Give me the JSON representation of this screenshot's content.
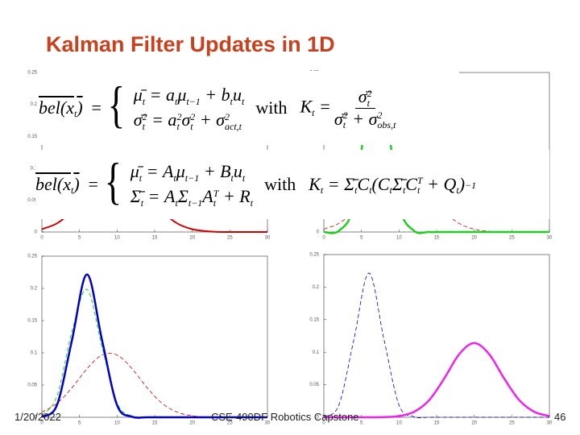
{
  "header": {
    "title": "Kalman Filter Updates in 1D"
  },
  "footer": {
    "date": "1/20/2022",
    "course": "CSE-490DF Robotics Capstone",
    "page": "46"
  },
  "equations": [
    {
      "lhs": [
        {
          "text": "bel(x",
          "sub": "t"
        },
        {
          "text": ")"
        }
      ],
      "lines": [
        [
          {
            "text": "μ̄",
            "sub": "t"
          },
          {
            "text": " = a",
            "sub": "t"
          },
          {
            "text": "μ",
            "sub": "t−1"
          },
          {
            "text": " + b",
            "sub": "t"
          },
          {
            "text": "u",
            "sub": "t"
          }
        ],
        [
          {
            "text": "σ̄",
            "sub": "t",
            "sup": "2"
          },
          {
            "text": " = a",
            "sub": "t",
            "sup": "2"
          },
          {
            "text": "σ",
            "sub": "t",
            "sup": "2"
          },
          {
            "text": " + σ",
            "sub": "act,t",
            "sup": "2"
          }
        ]
      ],
      "with": "with",
      "gain": {
        "lhs": [
          {
            "text": "K",
            "sub": "t"
          },
          {
            "text": " ="
          }
        ],
        "numerator": [
          {
            "text": "σ̄",
            "sub": "t",
            "sup": "2"
          }
        ],
        "denominator": [
          {
            "text": "σ̄",
            "sub": "t",
            "sup": "2"
          },
          {
            "text": " + σ",
            "sub": "obs,t",
            "sup": "2"
          }
        ]
      }
    },
    {
      "lhs": [
        {
          "text": "bel(x",
          "sub": "t"
        },
        {
          "text": ")"
        }
      ],
      "lines": [
        [
          {
            "text": "μ̄",
            "sub": "t"
          },
          {
            "text": " = A",
            "sub": "t"
          },
          {
            "text": "μ",
            "sub": "t−1"
          },
          {
            "text": " + B",
            "sub": "t"
          },
          {
            "text": "u",
            "sub": "t"
          }
        ],
        [
          {
            "text": "Σ̄",
            "sub": "t"
          },
          {
            "text": " = A",
            "sub": "t"
          },
          {
            "text": "Σ",
            "sub": "t−1"
          },
          {
            "text": "A",
            "sub": "t",
            "sup": "T"
          },
          {
            "text": " + R",
            "sub": "t"
          }
        ]
      ],
      "with": "with",
      "gain": {
        "lhs": [
          {
            "text": "K",
            "sub": "t"
          },
          {
            "text": " = Σ̄",
            "sub": "t"
          },
          {
            "text": "C",
            "sub": "t"
          },
          {
            "text": "(C",
            "sub": "t"
          },
          {
            "text": "Σ̄",
            "sub": "t"
          },
          {
            "text": "C",
            "sub": "t",
            "sup": "T"
          },
          {
            "text": " + Q",
            "sub": "t"
          },
          {
            "text": ")",
            "sup": "−1"
          }
        ]
      }
    }
  ],
  "chart_data": [
    {
      "type": "line",
      "x": [
        0,
        2,
        4,
        6,
        8,
        10,
        12,
        14,
        16,
        18,
        20,
        22,
        24,
        26,
        28,
        30
      ],
      "xlim": [
        0,
        30
      ],
      "ylim": [
        0,
        0.25
      ],
      "xticks": [
        0,
        5,
        10,
        15,
        20,
        25,
        30
      ],
      "yticks": [
        0,
        0.05,
        0.1,
        0.15,
        0.2,
        0.25
      ],
      "series": [
        {
          "color": "#cc0000",
          "width": 2,
          "dash": false,
          "values": [
            0.0044,
            0.0135,
            0.0324,
            0.0605,
            0.088,
            0.0997,
            0.088,
            0.0605,
            0.0324,
            0.0135,
            0.0044,
            0.0011,
            0,
            0,
            0,
            0
          ]
        }
      ]
    },
    {
      "type": "line",
      "x": [
        0,
        2,
        4,
        6,
        8,
        10,
        12,
        14,
        16,
        18,
        20,
        22,
        24,
        26,
        28,
        30
      ],
      "xlim": [
        0,
        30
      ],
      "ylim": [
        0,
        0.25
      ],
      "xticks": [
        0,
        5,
        10,
        15,
        20,
        25,
        30
      ],
      "yticks": [
        0,
        0.05,
        0.1,
        0.15,
        0.2,
        0.25
      ],
      "series": [
        {
          "color": "#cc0000",
          "width": 0.8,
          "dash": true,
          "values": [
            0.0044,
            0.0135,
            0.0324,
            0.0605,
            0.088,
            0.0997,
            0.088,
            0.0605,
            0.0324,
            0.0135,
            0.0044,
            0.0011,
            0,
            0,
            0,
            0
          ]
        },
        {
          "color": "#22cc22",
          "width": 2.5,
          "dash": false,
          "values": [
            0,
            0.0019,
            0.043,
            0.205,
            0.205,
            0.043,
            0.0019,
            0,
            0,
            0,
            0,
            0,
            0,
            0,
            0,
            0
          ]
        }
      ]
    },
    {
      "type": "line",
      "x": [
        0,
        2,
        4,
        6,
        8,
        10,
        12,
        14,
        16,
        18,
        20,
        22,
        24,
        26,
        28,
        30
      ],
      "xlim": [
        0,
        30
      ],
      "ylim": [
        0,
        0.25
      ],
      "xticks": [
        0,
        5,
        10,
        15,
        20,
        25,
        30
      ],
      "yticks": [
        0,
        0.05,
        0.1,
        0.15,
        0.2,
        0.25
      ],
      "series": [
        {
          "color": "#cc0000",
          "width": 0.8,
          "dash": true,
          "values": [
            0.0079,
            0.0216,
            0.0457,
            0.0753,
            0.0966,
            0.0966,
            0.0753,
            0.0457,
            0.0216,
            0.0079,
            0.0023,
            0.0005,
            0,
            0,
            0,
            0
          ]
        },
        {
          "color": "#22cc22",
          "width": 1,
          "dash": true,
          "values": [
            0.003,
            0.0328,
            0.133,
            0.1985,
            0.109,
            0.022,
            0.0016,
            0,
            0,
            0,
            0,
            0,
            0,
            0,
            0,
            0
          ]
        },
        {
          "color": "#0000cc",
          "width": 2.5,
          "dash": false,
          "values": [
            0.0009,
            0.0188,
            0.1196,
            0.2216,
            0.1196,
            0.0188,
            0.0009,
            0,
            0,
            0,
            0,
            0,
            0,
            0,
            0,
            0
          ]
        }
      ]
    },
    {
      "type": "line",
      "x": [
        0,
        2,
        4,
        6,
        8,
        10,
        12,
        14,
        16,
        18,
        20,
        22,
        24,
        26,
        28,
        30
      ],
      "xlim": [
        0,
        30
      ],
      "ylim": [
        0,
        0.25
      ],
      "xticks": [
        0,
        5,
        10,
        15,
        20,
        25,
        30
      ],
      "yticks": [
        0,
        0.05,
        0.1,
        0.15,
        0.2,
        0.25
      ],
      "series": [
        {
          "color": "#0000cc",
          "width": 0.8,
          "dash": true,
          "values": [
            0.0009,
            0.0188,
            0.1196,
            0.2216,
            0.1196,
            0.0188,
            0.0009,
            0,
            0,
            0,
            0,
            0,
            0,
            0,
            0,
            0
          ]
        },
        {
          "color": "#ee22ee",
          "width": 2.5,
          "dash": false,
          "values": [
            0,
            0,
            0,
            0,
            0.0003,
            0.0019,
            0.0084,
            0.0262,
            0.0593,
            0.0968,
            0.114,
            0.0968,
            0.0593,
            0.0262,
            0.0084,
            0.0019
          ]
        }
      ]
    }
  ]
}
